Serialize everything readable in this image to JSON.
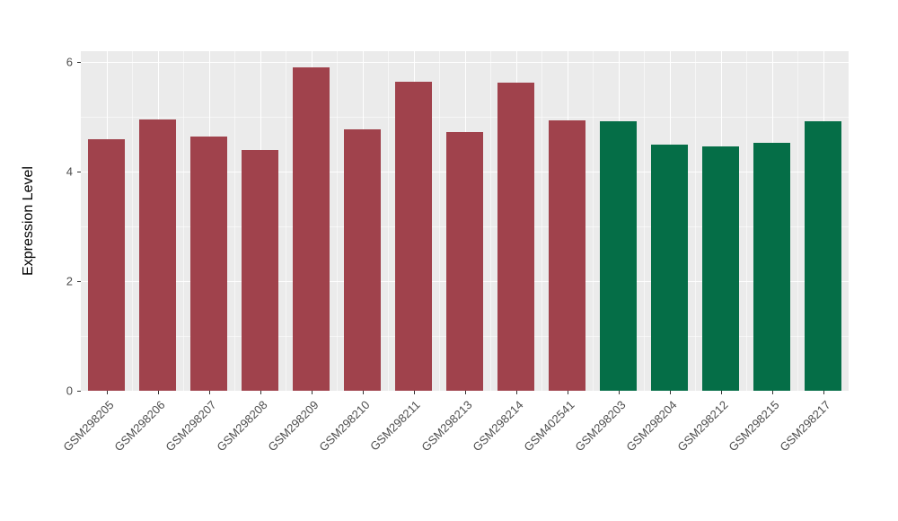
{
  "chart_data": {
    "type": "bar",
    "title": "",
    "xlabel": "",
    "ylabel": "Expression Level",
    "ylim": [
      0,
      6.2
    ],
    "yticks": [
      0,
      2,
      4,
      6
    ],
    "yticks_minor": [
      1,
      3,
      5
    ],
    "legend": "none",
    "grid": "on",
    "panel_bg": "#EBEBEB",
    "grid_major_color": "#FFFFFF",
    "grid_minor_color": "rgba(255,255,255,0.55)",
    "axis_text_color": "#4D4D4D",
    "bar_width_fraction": 0.72,
    "group_colors": {
      "group1": "#A0424C",
      "group2": "#056E47"
    },
    "bars": [
      {
        "label": "GSM298205",
        "value": 4.6,
        "color": "#A0424C"
      },
      {
        "label": "GSM298206",
        "value": 4.95,
        "color": "#A0424C"
      },
      {
        "label": "GSM298207",
        "value": 4.65,
        "color": "#A0424C"
      },
      {
        "label": "GSM298208",
        "value": 4.4,
        "color": "#A0424C"
      },
      {
        "label": "GSM298209",
        "value": 5.9,
        "color": "#A0424C"
      },
      {
        "label": "GSM298210",
        "value": 4.78,
        "color": "#A0424C"
      },
      {
        "label": "GSM298211",
        "value": 5.65,
        "color": "#A0424C"
      },
      {
        "label": "GSM298213",
        "value": 4.72,
        "color": "#A0424C"
      },
      {
        "label": "GSM298214",
        "value": 5.62,
        "color": "#A0424C"
      },
      {
        "label": "GSM402541",
        "value": 4.93,
        "color": "#A0424C"
      },
      {
        "label": "GSM298203",
        "value": 4.92,
        "color": "#056E47"
      },
      {
        "label": "GSM298204",
        "value": 4.5,
        "color": "#056E47"
      },
      {
        "label": "GSM298212",
        "value": 4.46,
        "color": "#056E47"
      },
      {
        "label": "GSM298215",
        "value": 4.53,
        "color": "#056E47"
      },
      {
        "label": "GSM298217",
        "value": 4.92,
        "color": "#056E47"
      }
    ]
  }
}
